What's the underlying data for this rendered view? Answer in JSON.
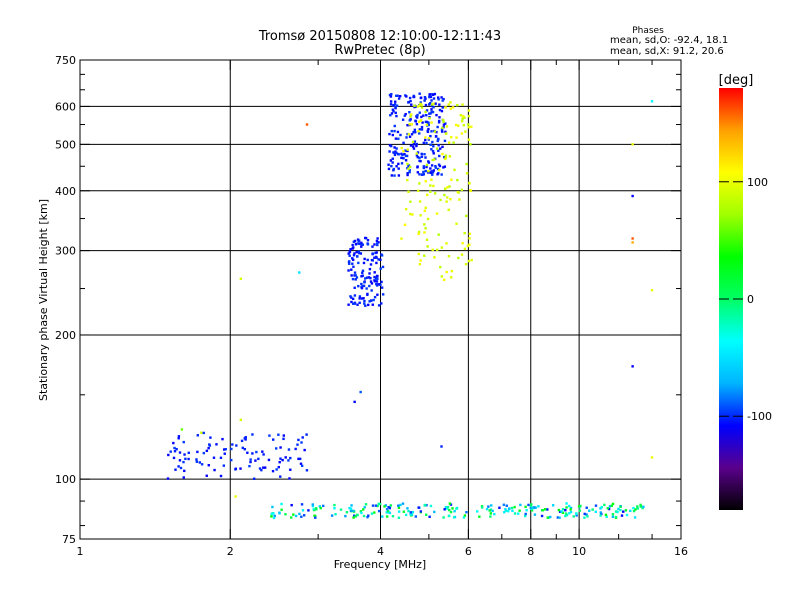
{
  "header": {
    "title": "Tromsø 20150808 12:10:00-12:11:43",
    "subtitle": "RwPretec (8p)"
  },
  "stats": {
    "heading": "Phases",
    "line1": "mean, sd,O: -92.4, 18.1",
    "line2": "mean, sd,X:  91.2, 20.6"
  },
  "colorbar": {
    "title": "[deg]",
    "range": [
      -180,
      180
    ],
    "tick_labels": [
      "100",
      "0",
      "-100"
    ],
    "tick_values": [
      100,
      0,
      -100
    ],
    "colors": [
      "#000000",
      "#5a008c",
      "#0000ff",
      "#00b4ff",
      "#00ffff",
      "#00ff64",
      "#00ff00",
      "#a0ff00",
      "#ffff00",
      "#ffa000",
      "#ff0000"
    ]
  },
  "chart_data": {
    "type": "scatter",
    "xlabel": "Frequency [MHz]",
    "ylabel": "Stationary phase Virtual Height [km]",
    "xscale": "log",
    "yscale": "log",
    "xlim": [
      1,
      16
    ],
    "ylim": [
      75,
      750
    ],
    "x_ticks": [
      1,
      2,
      4,
      6,
      8,
      10,
      16
    ],
    "x_tick_labels": [
      "1",
      "2",
      "4",
      "6",
      "8",
      "10",
      "16"
    ],
    "x_minor_ticks": [
      3,
      5,
      7,
      9,
      12,
      14
    ],
    "y_ticks": [
      75,
      100,
      200,
      300,
      400,
      500,
      600,
      750
    ],
    "y_tick_labels": [
      "75",
      "100",
      "200",
      "300",
      "400",
      "500",
      "600",
      "750"
    ],
    "y_minor_ticks": [
      80,
      90,
      150,
      250,
      350,
      450,
      550,
      650,
      700
    ],
    "x_gridlines": [
      2,
      4,
      6,
      8,
      10
    ],
    "y_gridlines": [
      100,
      200,
      300,
      400,
      500,
      600
    ],
    "clusters": [
      {
        "desc": "E-layer echoes",
        "fmin": 2.4,
        "fmax": 13.5,
        "hmin": 83,
        "hmax": 89,
        "phase": [
          -110,
          40
        ],
        "n": 260
      },
      {
        "desc": "low echoes",
        "fmin": 1.5,
        "fmax": 2.9,
        "hmin": 100,
        "hmax": 125,
        "phase": [
          -110,
          -95
        ],
        "n": 110
      },
      {
        "desc": "O-mode F trace",
        "fmin": 3.45,
        "fmax": 4.05,
        "hmin": 230,
        "hmax": 320,
        "phase": [
          -110,
          -95
        ],
        "n": 150
      },
      {
        "desc": "O-mode F cusp",
        "fmin": 4.15,
        "fmax": 5.4,
        "hmin": 430,
        "hmax": 640,
        "phase": [
          -110,
          -95
        ],
        "n": 260
      },
      {
        "desc": "X-mode F trace",
        "fmin": 4.4,
        "fmax": 6.1,
        "hmin": 260,
        "hmax": 620,
        "phase": [
          80,
          110
        ],
        "n": 160
      }
    ],
    "isolated_points": [
      {
        "x": 2.1,
        "y": 262,
        "phase": 90
      },
      {
        "x": 2.75,
        "y": 270,
        "phase": -50
      },
      {
        "x": 2.85,
        "y": 550,
        "phase": 160
      },
      {
        "x": 3.65,
        "y": 152,
        "phase": -90
      },
      {
        "x": 3.55,
        "y": 145,
        "phase": -110
      },
      {
        "x": 5.3,
        "y": 117,
        "phase": -100
      },
      {
        "x": 12.8,
        "y": 500,
        "phase": 100
      },
      {
        "x": 12.8,
        "y": 390,
        "phase": -110
      },
      {
        "x": 12.8,
        "y": 318,
        "phase": 160
      },
      {
        "x": 12.8,
        "y": 312,
        "phase": 140
      },
      {
        "x": 12.8,
        "y": 172,
        "phase": -110
      },
      {
        "x": 14.0,
        "y": 615,
        "phase": -40
      },
      {
        "x": 14.0,
        "y": 248,
        "phase": 100
      },
      {
        "x": 14.0,
        "y": 111,
        "phase": 100
      },
      {
        "x": 2.05,
        "y": 92,
        "phase": 100
      },
      {
        "x": 1.75,
        "y": 125,
        "phase": 90
      },
      {
        "x": 1.6,
        "y": 127,
        "phase": 60
      },
      {
        "x": 2.1,
        "y": 133,
        "phase": 90
      }
    ]
  }
}
